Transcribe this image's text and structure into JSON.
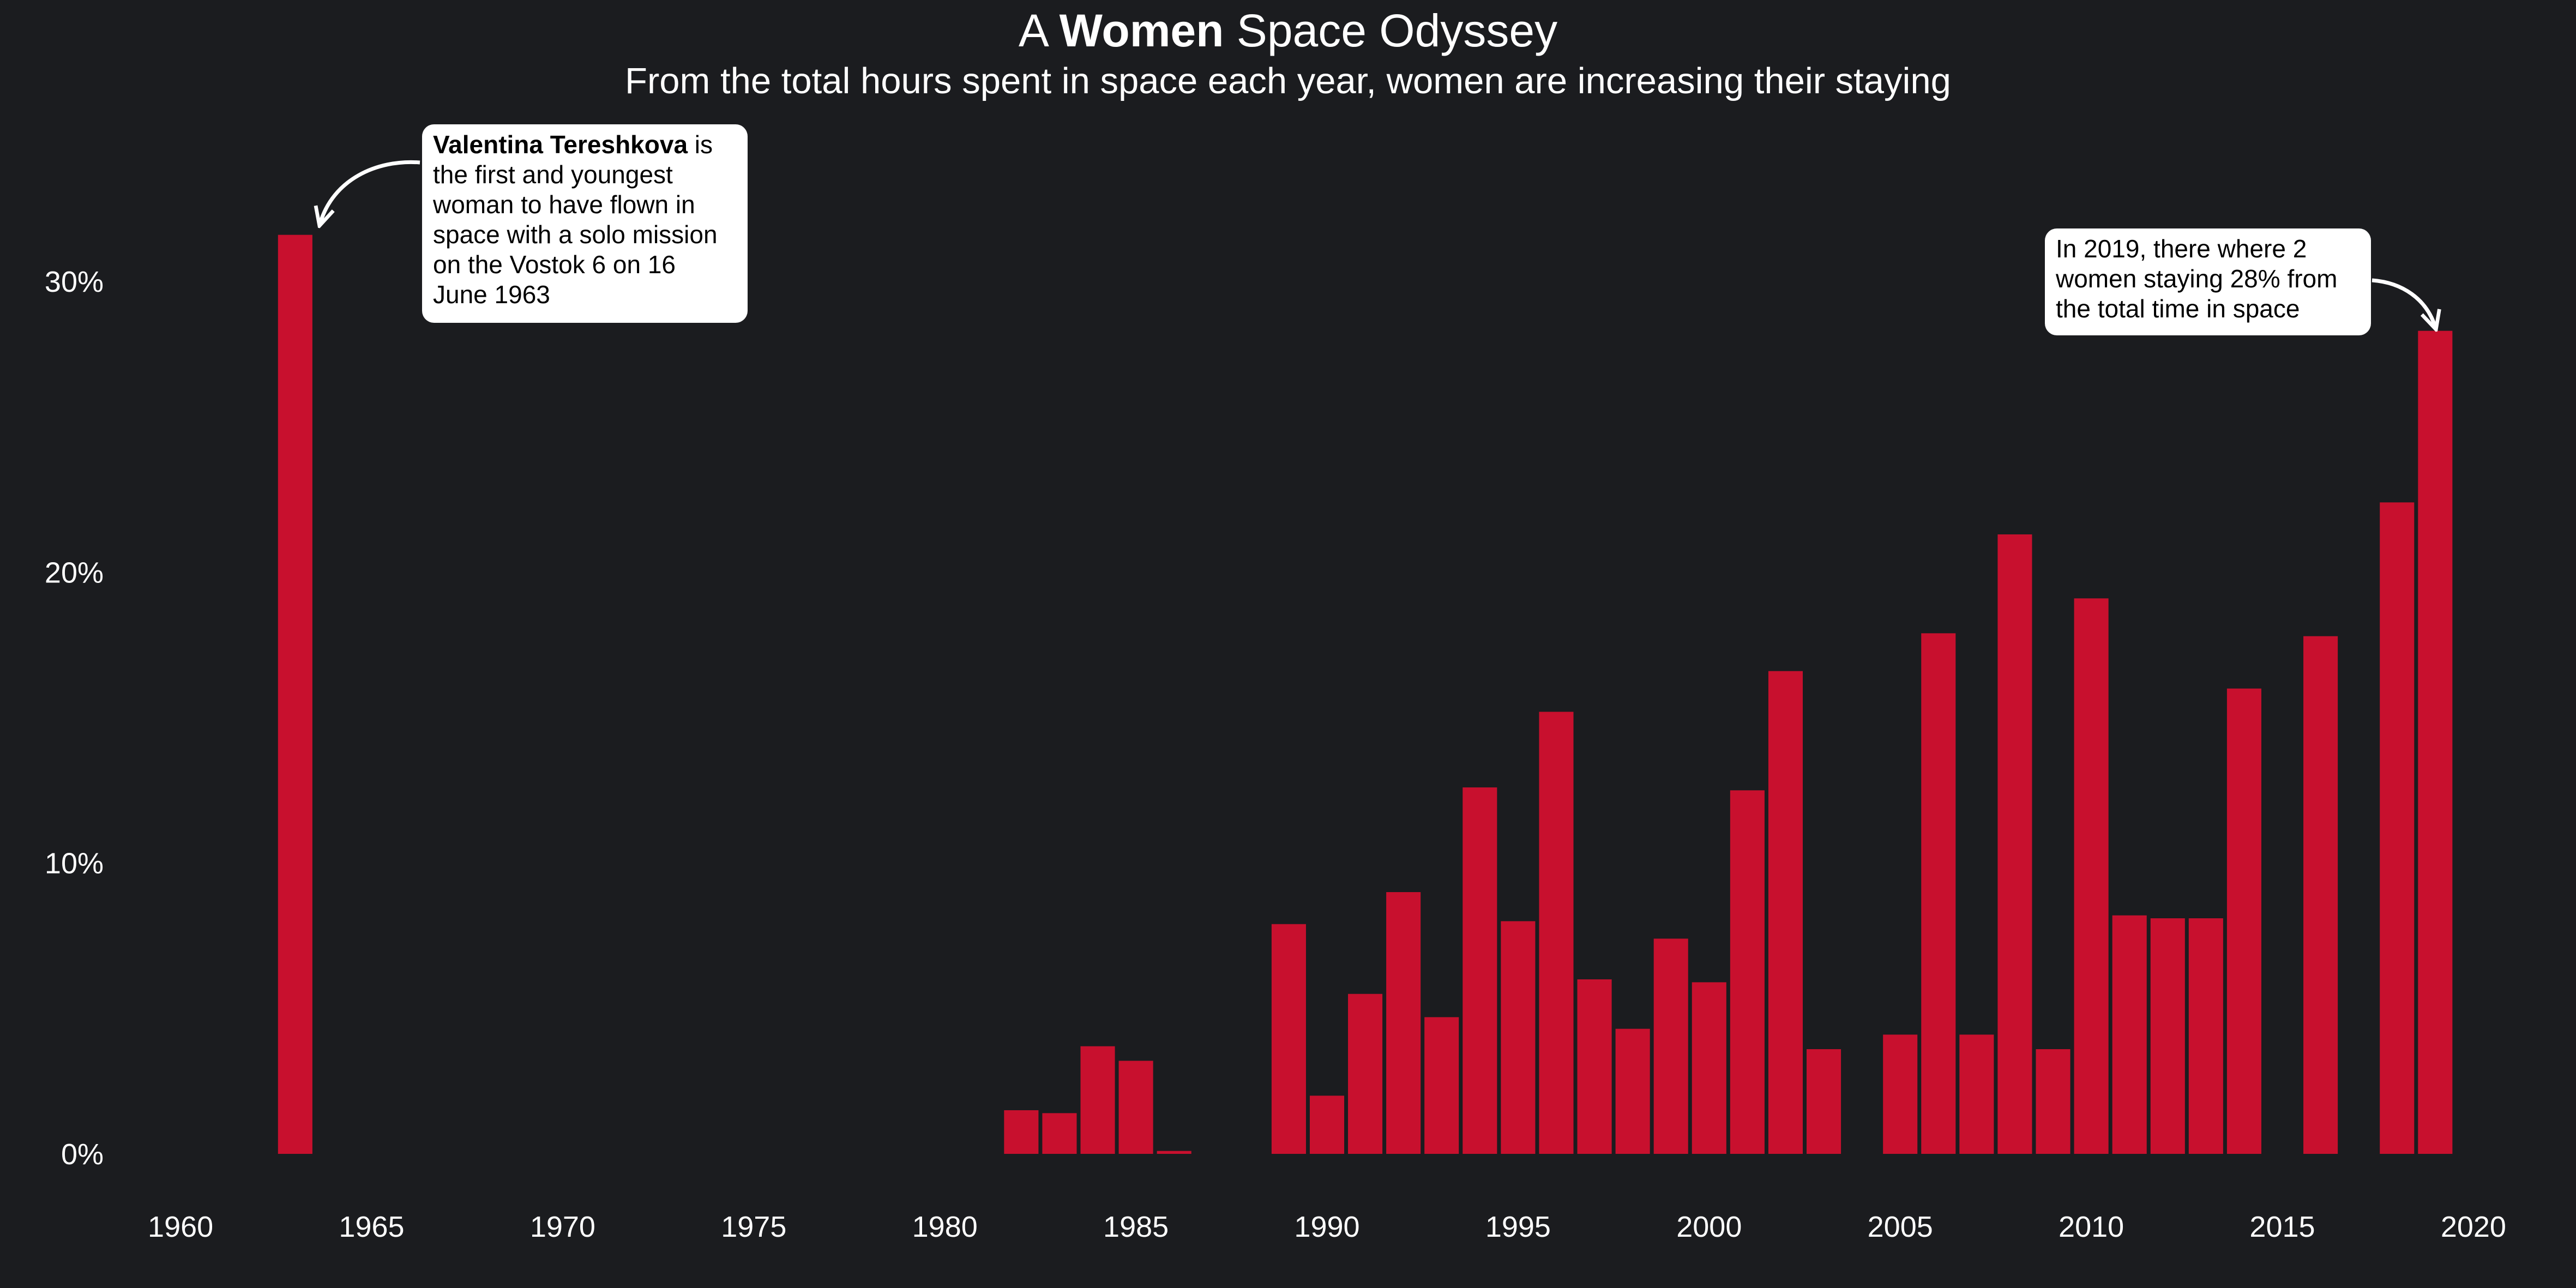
{
  "title": {
    "prefix": "A ",
    "accent": "Women",
    "suffix": " Space Odyssey"
  },
  "subtitle": "From the total hours spent in space each year, women are increasing their staying",
  "colors": {
    "background": "#1b1c1f",
    "bar": "#c8102e",
    "text": "#ffffff",
    "annotation_bg": "#ffffff"
  },
  "annotations": [
    {
      "bold": "Valentina Tereshkova",
      "text": " is the first and youngest woman to have flown in space with a solo mission on the Vostok 6 on 16 June 1963"
    },
    {
      "bold": "",
      "text": "In 2019, there where 2 women staying 28% from the total time in space"
    }
  ],
  "chart_data": {
    "type": "bar",
    "title": "A Women Space Odyssey",
    "subtitle": "From the total hours spent in space each year, women are increasing their staying",
    "xlabel": "",
    "ylabel": "",
    "xlim": [
      1958.7,
      2021.2
    ],
    "ylim": [
      0,
      35
    ],
    "x_ticks": [
      "1960",
      "1965",
      "1970",
      "1975",
      "1980",
      "1985",
      "1990",
      "1995",
      "2000",
      "2005",
      "2010",
      "2015",
      "2020"
    ],
    "y_ticks": [
      "0%",
      "10%",
      "20%",
      "30%"
    ],
    "grid": false,
    "legend": "none",
    "x": [
      1963,
      1982,
      1983,
      1984,
      1985,
      1986,
      1989,
      1990,
      1991,
      1992,
      1993,
      1994,
      1995,
      1996,
      1997,
      1998,
      1999,
      2000,
      2001,
      2002,
      2003,
      2005,
      2006,
      2007,
      2008,
      2009,
      2010,
      2011,
      2012,
      2013,
      2014,
      2016,
      2018,
      2019
    ],
    "values": [
      31.6,
      1.5,
      1.4,
      3.7,
      3.2,
      0.1,
      7.9,
      2.0,
      5.5,
      9.0,
      4.7,
      12.6,
      8.0,
      15.2,
      6.0,
      4.3,
      7.4,
      5.9,
      12.5,
      16.6,
      3.6,
      4.1,
      17.9,
      4.1,
      21.3,
      3.6,
      19.1,
      8.2,
      8.1,
      8.1,
      16.0,
      17.8,
      22.4,
      28.3
    ]
  }
}
